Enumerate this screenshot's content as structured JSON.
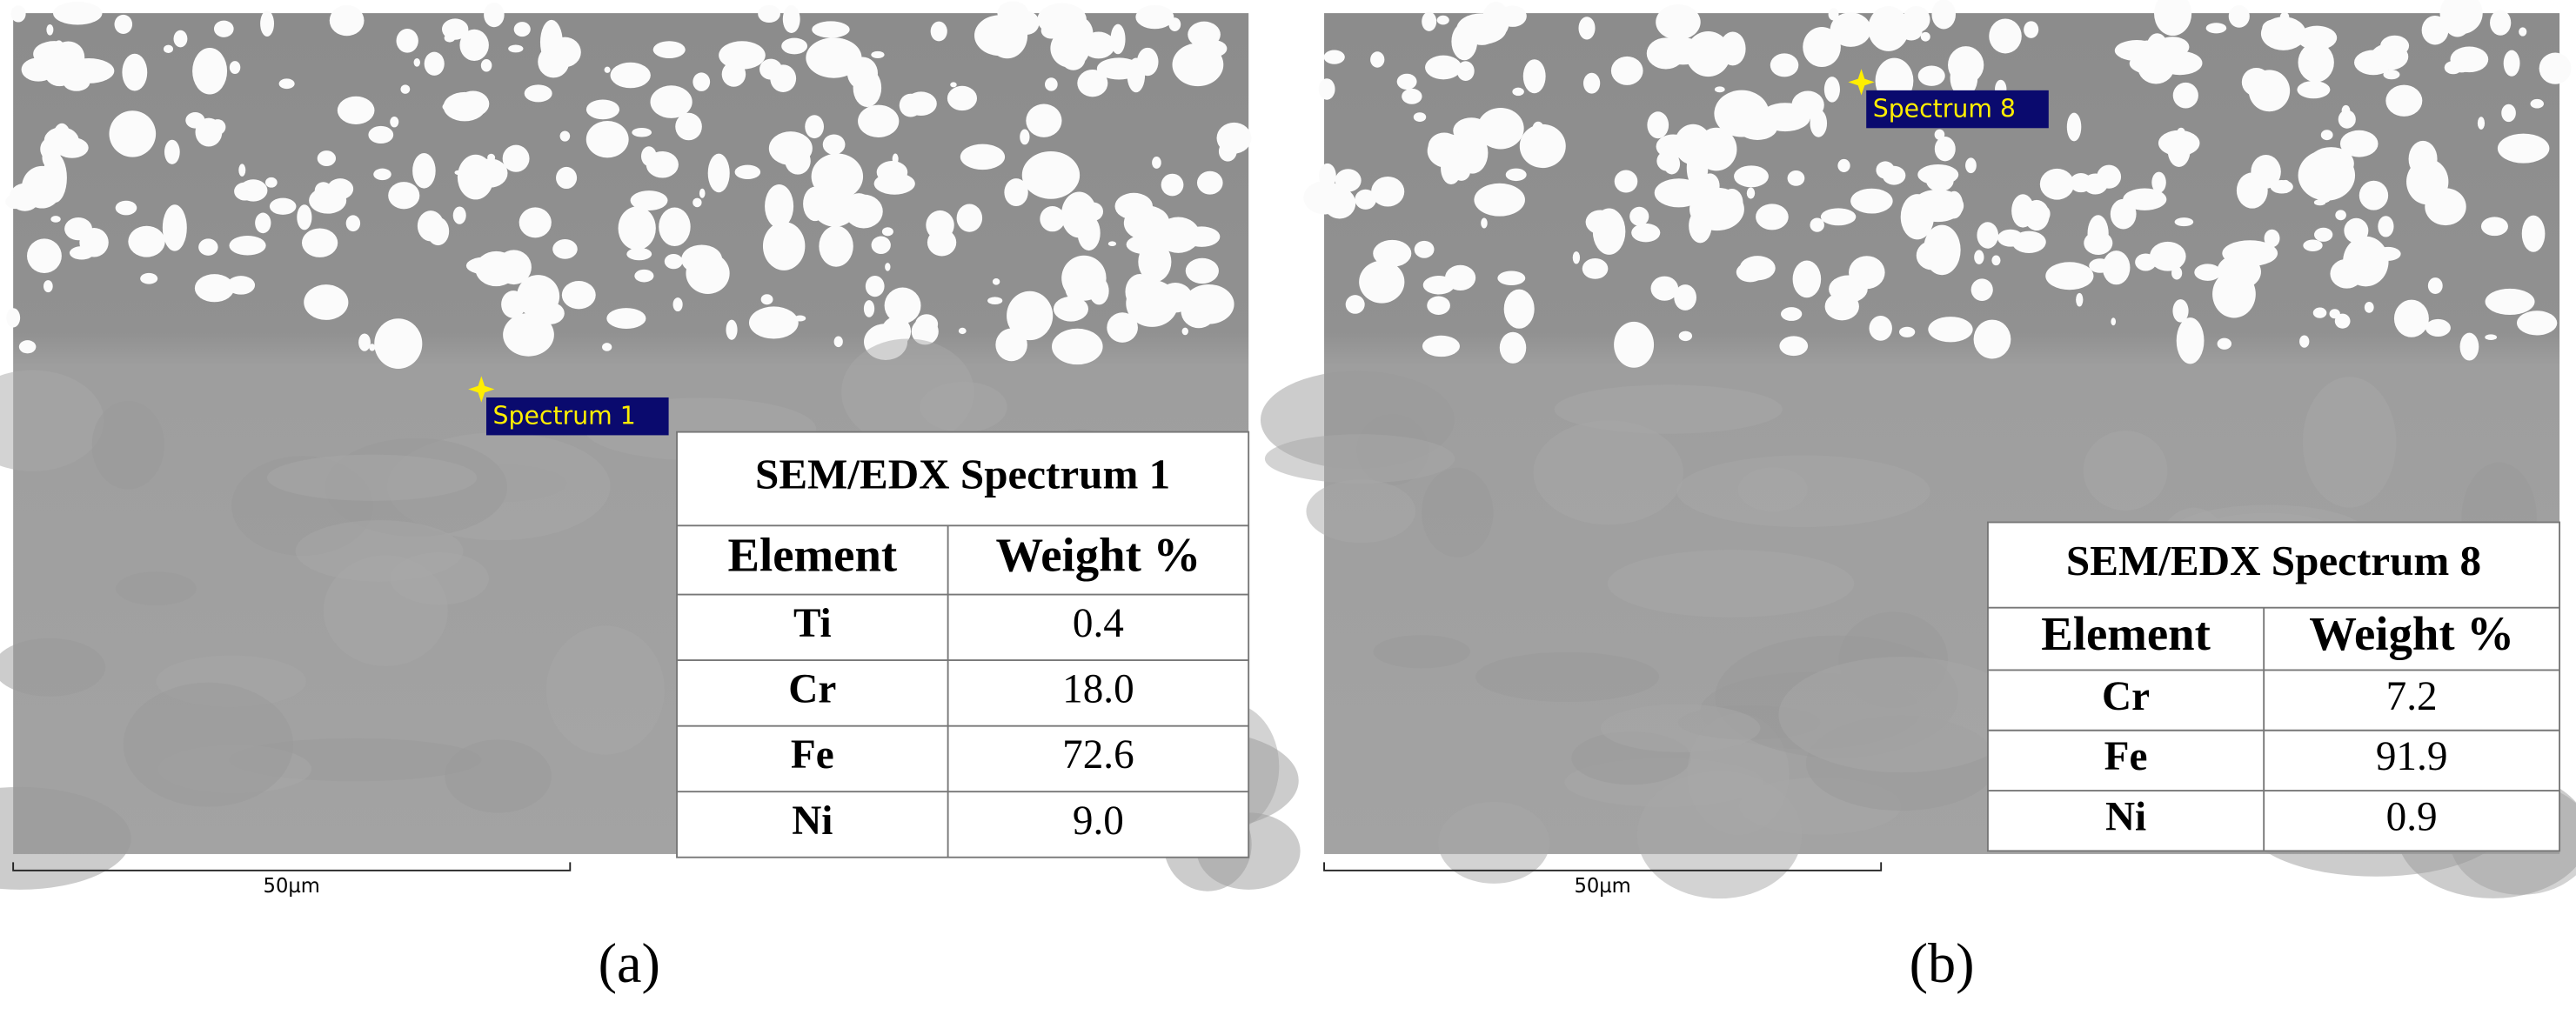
{
  "panels": [
    {
      "label": "(a)",
      "marker_label": "Spectrum 1",
      "scale_label": "50µm",
      "table": {
        "title": "SEM/EDX Spectrum 1",
        "columns": [
          "Element",
          "Weight %"
        ],
        "rows": [
          [
            "Ti",
            "0.4"
          ],
          [
            "Cr",
            "18.0"
          ],
          [
            "Fe",
            "72.6"
          ],
          [
            "Ni",
            "9.0"
          ]
        ]
      }
    },
    {
      "label": "(b)",
      "marker_label": "Spectrum 8",
      "scale_label": "50µm",
      "table": {
        "title": "SEM/EDX Spectrum 8",
        "columns": [
          "Element",
          "Weight %"
        ],
        "rows": [
          [
            "Cr",
            "7.2"
          ],
          [
            "Fe",
            "91.9"
          ],
          [
            "Ni",
            "0.9"
          ]
        ]
      }
    }
  ]
}
